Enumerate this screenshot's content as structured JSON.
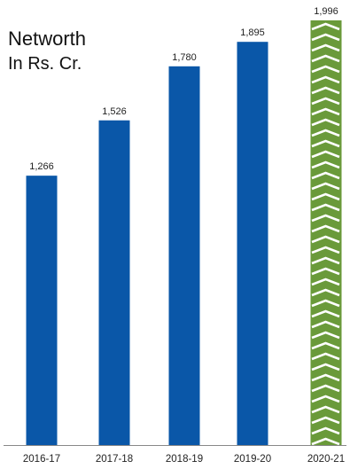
{
  "chart_data": {
    "type": "bar",
    "title": "Networth",
    "subtitle": "In Rs. Cr.",
    "categories": [
      "2016-17",
      "2017-18",
      "2018-19",
      "2019-20",
      "2020-21"
    ],
    "values": [
      1266,
      1526,
      1780,
      1895,
      1996
    ],
    "value_labels": [
      "1,266",
      "1,526",
      "1,780",
      "1,895",
      "1,996"
    ],
    "xlabel": "",
    "ylabel": "",
    "ylim": [
      0,
      2000
    ],
    "grid": false,
    "legend": "none",
    "colors": {
      "bar": "#0a57a8",
      "highlight_bar": "#6a9a3a",
      "highlight_pattern": "#ffffff",
      "axis": "#888888",
      "text": "#222222"
    },
    "highlight_index": 4
  }
}
